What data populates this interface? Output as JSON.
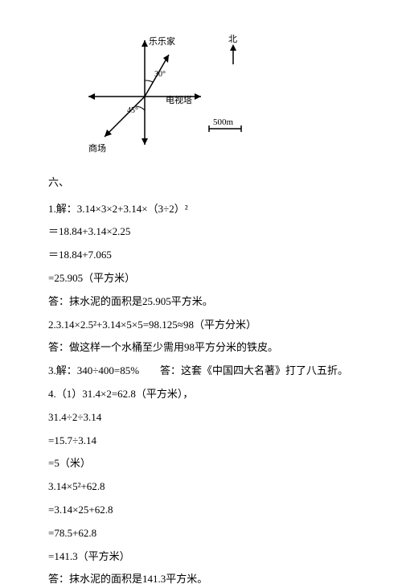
{
  "diagram": {
    "labels": {
      "north": "北",
      "home": "乐乐家",
      "tower": "电视塔",
      "mall": "商场",
      "scale": "500m",
      "angle_top": "30°",
      "angle_bottom": "45°"
    },
    "stroke_color": "#000000",
    "stroke_width": 1.5
  },
  "section_heading": "六、",
  "lines": [
    "1.解：3.14×3×2+3.14×（3÷2）²",
    "＝18.84+3.14×2.25",
    "＝18.84+7.065",
    "=25.905（平方米）",
    "答：抹水泥的面积是25.905平方米。",
    "2.3.14×2.5²+3.14×5×5=98.125≈98（平方分米）",
    "答：做这样一个水桶至少需用98平方分米的铁皮。",
    "3.解：340÷400=85%　　答：这套《中国四大名著》打了八五折。",
    "4.（1）31.4×2=62.8（平方米），",
    "31.4÷2÷3.14",
    "=15.7÷3.14",
    "=5（米）",
    "3.14×5²+62.8",
    "=3.14×25+62.8",
    "=78.5+62.8",
    "=141.3（平方米）",
    "答：抹水泥的面积是141.3平方米。"
  ],
  "line_spacing_compact": [
    7
  ]
}
